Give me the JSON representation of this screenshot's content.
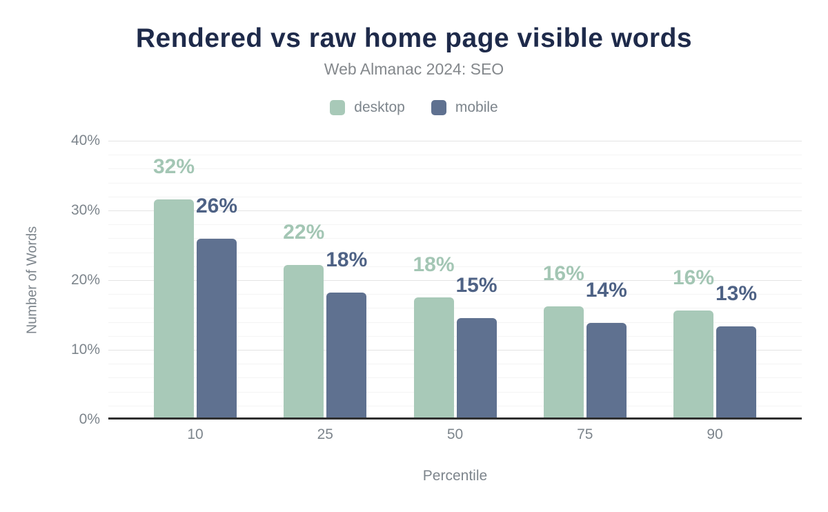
{
  "title": "Rendered vs raw home page visible words",
  "subtitle": "Web Almanac 2024: SEO",
  "colors": {
    "title": "#1e2a4a",
    "subtitle": "#84888c",
    "axis_text": "#7d858c",
    "axis_line": "#2f2f2f",
    "gridline_major": "#e4e4e4",
    "gridline_minor": "#f4f4f4",
    "desktop": "#a8c9b8",
    "mobile": "#5f7190",
    "desktop_label": "#a3c6b4",
    "mobile_label": "#4e6285"
  },
  "chart_data": {
    "type": "bar",
    "categories": [
      "10",
      "25",
      "50",
      "75",
      "90"
    ],
    "series": [
      {
        "name": "desktop",
        "color": "#a8c9b8",
        "label_color": "#a3c6b4",
        "values": [
          31.6,
          22.2,
          17.5,
          16.2,
          15.6
        ],
        "labels": [
          "32%",
          "22%",
          "18%",
          "16%",
          "16%"
        ]
      },
      {
        "name": "mobile",
        "color": "#5f7190",
        "label_color": "#4e6285",
        "values": [
          25.9,
          18.2,
          14.6,
          13.9,
          13.4
        ],
        "labels": [
          "26%",
          "18%",
          "15%",
          "14%",
          "13%"
        ]
      }
    ],
    "title": "Rendered vs raw home page visible words",
    "subtitle": "Web Almanac 2024: SEO",
    "xlabel": "Percentile",
    "ylabel": "Number of Words",
    "ylim": [
      0,
      40
    ],
    "yticks": [
      {
        "value": 0,
        "label": "0%"
      },
      {
        "value": 10,
        "label": "10%"
      },
      {
        "value": 20,
        "label": "20%"
      },
      {
        "value": 30,
        "label": "30%"
      },
      {
        "value": 40,
        "label": "40%"
      }
    ],
    "minor_gridline_step": 2,
    "grid": true,
    "legend_position": "top",
    "legend": [
      "desktop",
      "mobile"
    ]
  }
}
